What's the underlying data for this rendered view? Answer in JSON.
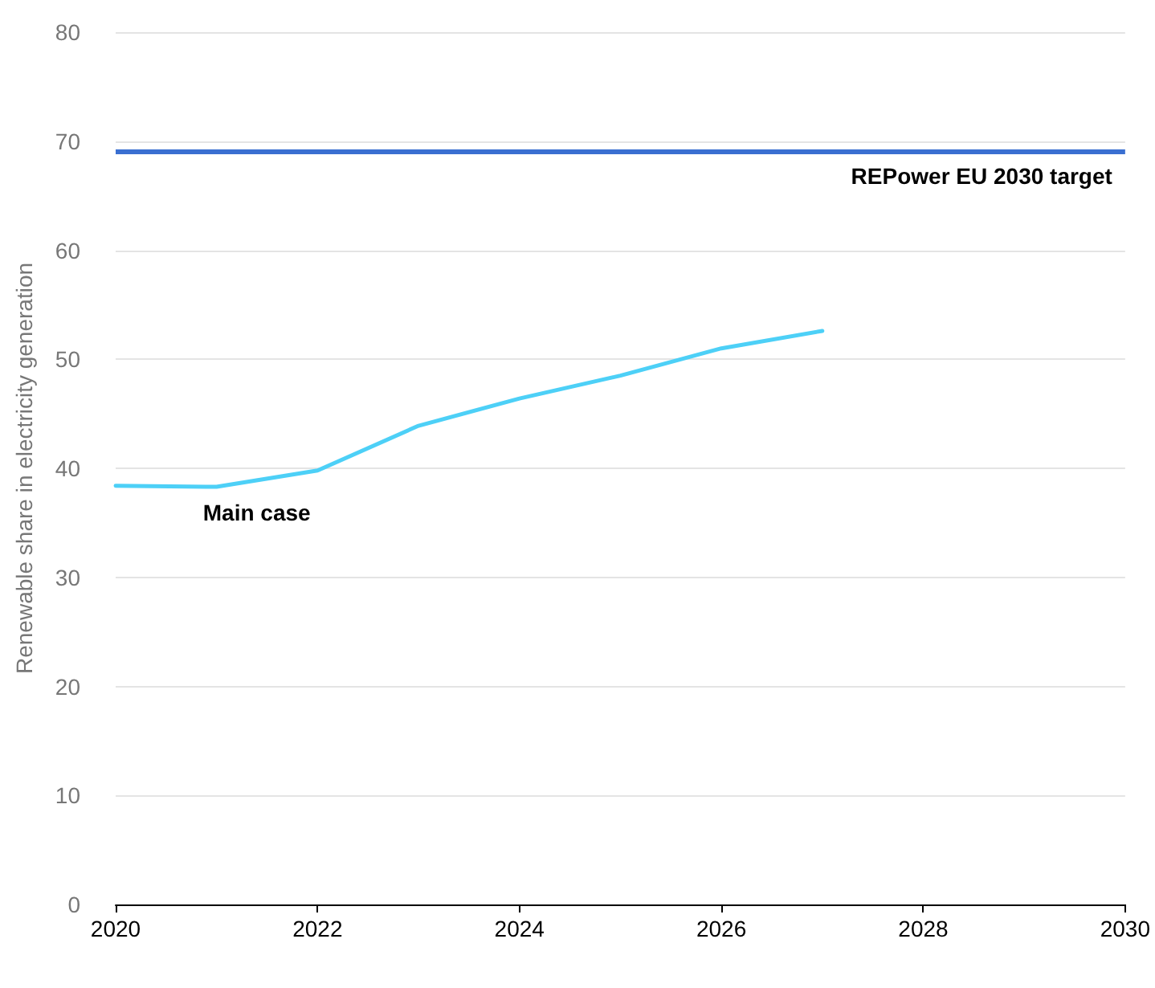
{
  "chart_data": {
    "type": "line",
    "ylabel": "Renewable share in electricity generation",
    "x": [
      2020,
      2021,
      2022,
      2023,
      2024,
      2025,
      2026,
      2027
    ],
    "series": [
      {
        "name": "Main case",
        "color": "#4dd0f7",
        "values": [
          38.4,
          38.3,
          39.8,
          43.9,
          46.4,
          48.5,
          51.0,
          52.6
        ]
      }
    ],
    "xlim": [
      2020,
      2030
    ],
    "xticks": [
      2020,
      2022,
      2024,
      2026,
      2028,
      2030
    ],
    "ylim": [
      0,
      80
    ],
    "yticks": [
      0,
      10,
      20,
      30,
      40,
      50,
      60,
      70,
      80
    ],
    "ref_lines": [
      {
        "axis": "y",
        "value": 69,
        "label": "REPower EU 2030 target",
        "color": "#3a6fd1",
        "line_style": "solid"
      }
    ],
    "grid": "y",
    "legend": false,
    "marker": "none",
    "line_style": "solid"
  }
}
